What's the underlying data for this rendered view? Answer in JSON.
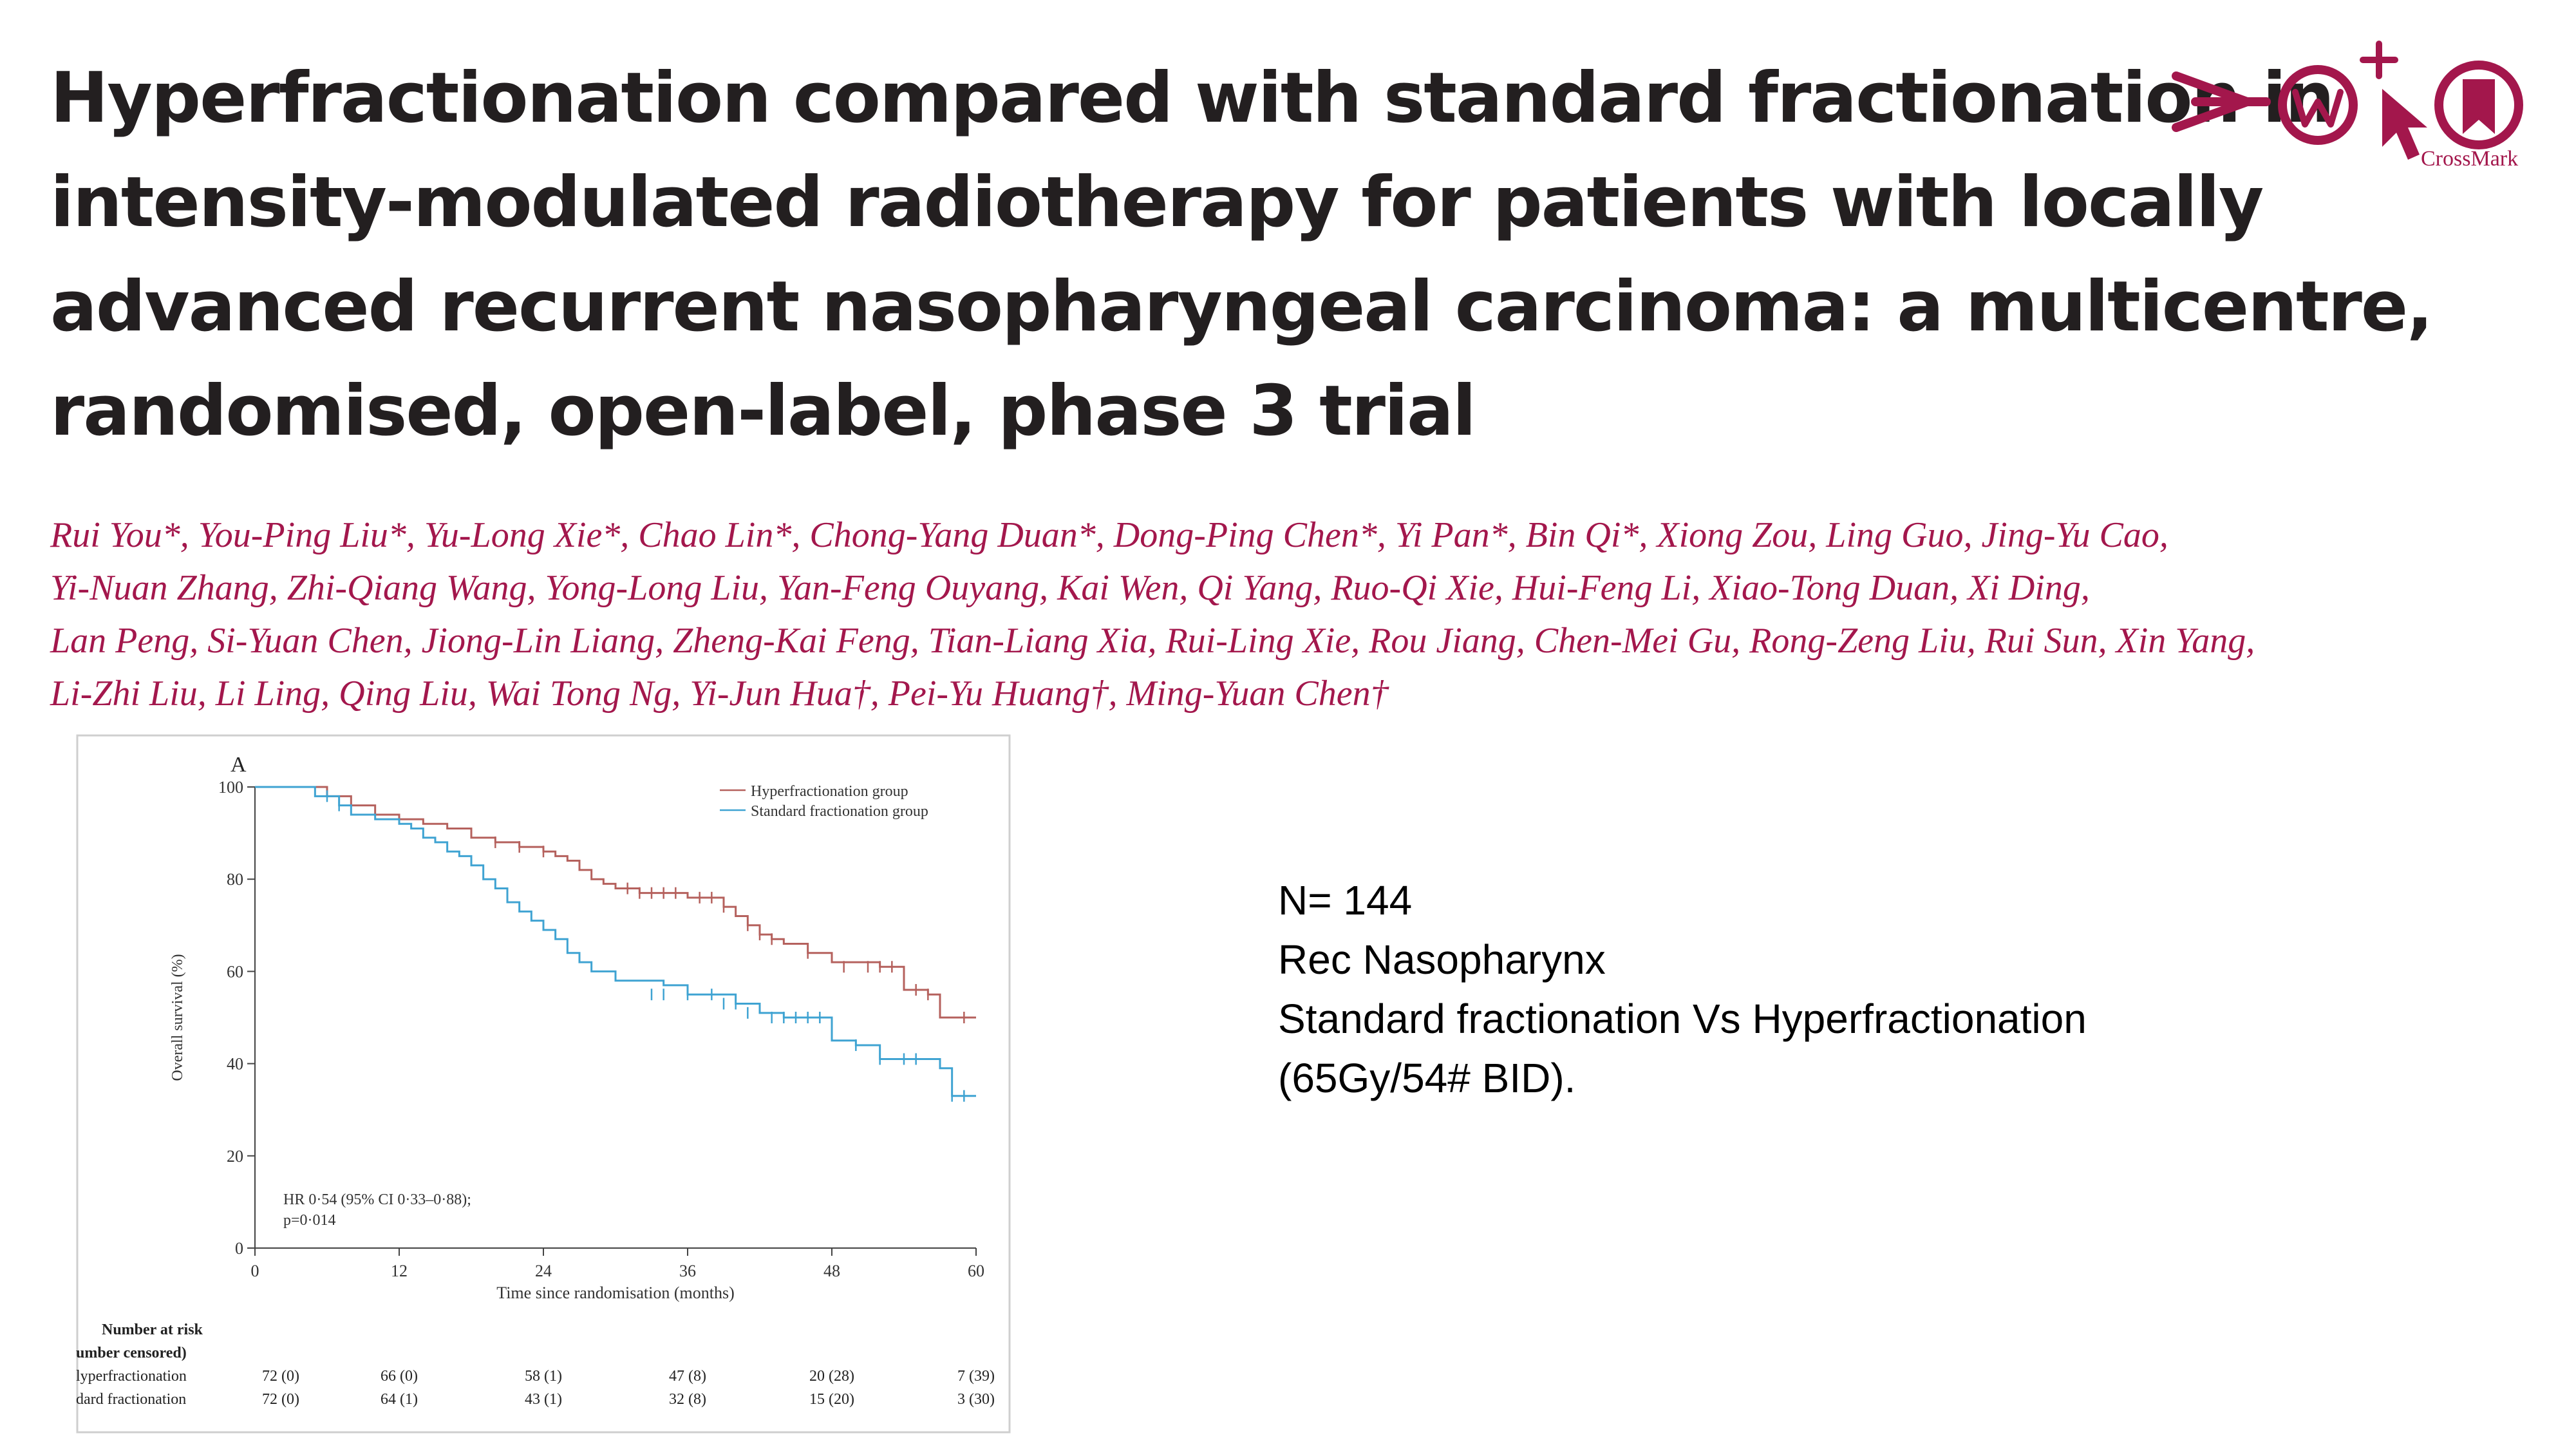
{
  "title": [
    "Hyperfractionation compared with standard fractionation in",
    "intensity-modulated radiotherapy for patients with locally",
    "advanced recurrent nasopharyngeal carcinoma: a multicentre,",
    "randomised, open-label, phase 3 trial"
  ],
  "authors": [
    "Rui You*, You-Ping Liu*, Yu-Long Xie*, Chao Lin*, Chong-Yang Duan*, Dong-Ping Chen*, Yi Pan*, Bin Qi*, Xiong Zou, Ling Guo, Jing-Yu Cao,",
    "Yi-Nuan Zhang, Zhi-Qiang Wang, Yong-Long Liu, Yan-Feng Ouyang, Kai Wen, Qi Yang, Ruo-Qi Xie, Hui-Feng Li, Xiao-Tong Duan, Xi Ding,",
    "Lan Peng, Si-Yuan Chen, Jiong-Lin Liang, Zheng-Kai Feng, Tian-Liang Xia, Rui-Ling Xie, Rou Jiang, Chen-Mei Gu, Rong-Zeng Liu, Rui Sun, Xin Yang,",
    "Li-Zhi Liu, Li Ling, Qing Liu, Wai Tong Ng, Yi-Jun Hua†, Pei-Yu Huang†, Ming-Yuan Chen†"
  ],
  "logo": {
    "label": "CrossMark",
    "color": "#a3174c"
  },
  "notes": [
    "N= 144",
    "Rec Nasopharynx",
    "Standard fractionation Vs Hyperfractionation",
    "(65Gy/54# BID)."
  ],
  "chart_data": {
    "type": "line",
    "panel_label": "A",
    "xlabel": "Time since randomisation (months)",
    "ylabel": "Overall survival (%)",
    "xlim": [
      0,
      60
    ],
    "ylim": [
      0,
      100
    ],
    "x_ticks": [
      0,
      12,
      24,
      36,
      48,
      60
    ],
    "y_ticks": [
      0,
      20,
      40,
      60,
      80,
      100
    ],
    "legend_position": "top-right",
    "annotation": [
      "HR 0·54 (95% CI 0·33–0·88);",
      "p=0·014"
    ],
    "series": [
      {
        "name": "Hyperfractionation group",
        "color": "#b5615d",
        "x": [
          0,
          5,
          6,
          8,
          10,
          12,
          14,
          16,
          18,
          20,
          22,
          24,
          25,
          26,
          27,
          28,
          29,
          30,
          32,
          34,
          36,
          38,
          39,
          40,
          41,
          42,
          43,
          44,
          46,
          48,
          52,
          54,
          56,
          57,
          60
        ],
        "y": [
          100,
          100,
          98,
          96,
          94,
          93,
          92,
          91,
          89,
          88,
          87,
          86,
          85,
          84,
          82,
          80,
          79,
          78,
          77,
          77,
          76,
          76,
          74,
          72,
          70,
          68,
          67,
          66,
          64,
          62,
          61,
          56,
          55,
          50,
          50
        ],
        "censor_x": [
          20,
          22,
          24,
          31,
          32,
          33,
          34,
          35,
          37,
          38,
          39,
          41,
          42,
          43,
          46,
          49,
          51,
          52,
          53,
          55,
          56,
          59
        ],
        "censor_y": [
          88,
          87,
          86,
          78,
          77,
          77,
          77,
          77,
          76,
          76,
          74,
          70,
          68,
          67,
          64,
          61,
          61,
          61,
          61,
          56,
          55,
          50
        ]
      },
      {
        "name": "Standard fractionation group",
        "color": "#3fa3d2",
        "x": [
          0,
          4,
          5,
          7,
          8,
          10,
          12,
          13,
          14,
          15,
          16,
          17,
          18,
          19,
          20,
          21,
          22,
          23,
          24,
          25,
          26,
          27,
          28,
          29,
          30,
          32,
          34,
          36,
          38,
          40,
          42,
          44,
          46,
          48,
          50,
          52,
          54,
          56,
          57,
          58,
          60
        ],
        "y": [
          100,
          100,
          98,
          96,
          94,
          93,
          92,
          91,
          89,
          88,
          86,
          85,
          83,
          80,
          78,
          75,
          73,
          71,
          69,
          67,
          64,
          62,
          60,
          60,
          58,
          58,
          57,
          55,
          55,
          53,
          51,
          50,
          50,
          45,
          44,
          41,
          41,
          41,
          39,
          33,
          33
        ],
        "censor_x": [
          6,
          7,
          33,
          34,
          36,
          38,
          39,
          40,
          41,
          43,
          44,
          45,
          46,
          47,
          50,
          52,
          54,
          55,
          58,
          59
        ],
        "censor_y": [
          98,
          96,
          55,
          55,
          55,
          55,
          53,
          53,
          51,
          50,
          50,
          50,
          50,
          50,
          44,
          41,
          41,
          41,
          33,
          33
        ]
      }
    ],
    "risk_table": {
      "header": [
        "Number at risk",
        "umber censored)"
      ],
      "rows": [
        {
          "label": "lyperfractionation",
          "values": [
            "72 (0)",
            "66 (0)",
            "58 (1)",
            "47 (8)",
            "20 (28)",
            "7 (39)"
          ]
        },
        {
          "label": "dard fractionation",
          "values": [
            "72 (0)",
            "64 (1)",
            "43 (1)",
            "32 (8)",
            "15 (20)",
            "3 (30)"
          ]
        }
      ]
    }
  }
}
